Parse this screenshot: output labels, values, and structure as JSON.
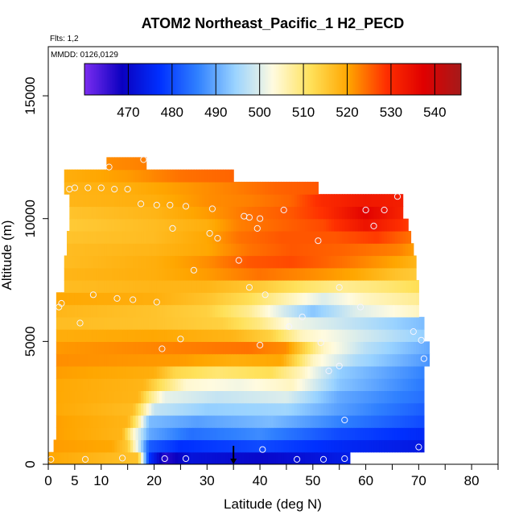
{
  "chart_data": {
    "type": "heatmap",
    "title": "ATOM2 Northeast_Pacific_1 H2_PECD",
    "flights_note": "Flts: 1,2",
    "dates_note": "MMDD: 0126,0129",
    "xlabel": "Latitude (deg N)",
    "ylabel": "Altitude (m)",
    "xlim": [
      0,
      85
    ],
    "ylim": [
      0,
      17000
    ],
    "x_ticks": [
      0,
      5,
      10,
      20,
      30,
      40,
      50,
      60,
      70,
      80
    ],
    "x_tick_labels": [
      "0",
      "5",
      "10",
      "20",
      "30",
      "40",
      "50",
      "60",
      "70",
      "80"
    ],
    "x_minor_ticks": [
      15,
      25,
      35,
      45,
      55,
      65,
      75,
      85
    ],
    "y_ticks": [
      0,
      5000,
      10000,
      15000
    ],
    "y_tick_labels": [
      "0",
      "5000",
      "10000",
      "15000"
    ],
    "colorbar": {
      "min": 460,
      "max": 546,
      "ticks": [
        470,
        480,
        490,
        500,
        510,
        520,
        530,
        540
      ],
      "tick_labels": [
        "470",
        "480",
        "490",
        "500",
        "510",
        "520",
        "530",
        "540"
      ],
      "colors": [
        "#7b2df0",
        "#0a00c0",
        "#0030ff",
        "#2f80ff",
        "#9ad3ff",
        "#fffbe0",
        "#ffe15a",
        "#ffa600",
        "#ff3000",
        "#e00000",
        "#a51a1a"
      ]
    },
    "layers": [
      {
        "alt": [
          0,
          500
        ],
        "lat_min": 0,
        "lat_max": 57,
        "values": [
          [
            0,
            520
          ],
          [
            17,
            516
          ],
          [
            19,
            478
          ],
          [
            22,
            466
          ],
          [
            27,
            472
          ],
          [
            40,
            470
          ],
          [
            50,
            472
          ],
          [
            57,
            474
          ]
        ]
      },
      {
        "alt": [
          500,
          1000
        ],
        "lat_min": 1,
        "lat_max": 71,
        "values": [
          [
            0,
            521
          ],
          [
            12,
            520
          ],
          [
            15,
            515
          ],
          [
            17,
            500
          ],
          [
            19,
            482
          ],
          [
            25,
            477
          ],
          [
            40,
            480
          ],
          [
            55,
            476
          ],
          [
            71,
            473
          ]
        ]
      },
      {
        "alt": [
          1000,
          1500
        ],
        "lat_min": 1.5,
        "lat_max": 71,
        "values": [
          [
            0,
            521
          ],
          [
            14,
            518
          ],
          [
            16,
            505
          ],
          [
            19,
            490
          ],
          [
            27,
            484
          ],
          [
            40,
            487
          ],
          [
            55,
            480
          ],
          [
            71,
            476
          ]
        ]
      },
      {
        "alt": [
          1500,
          2000
        ],
        "lat_min": 1.5,
        "lat_max": 71,
        "values": [
          [
            0,
            521
          ],
          [
            15,
            518
          ],
          [
            17,
            508
          ],
          [
            19,
            492
          ],
          [
            28,
            489
          ],
          [
            42,
            492
          ],
          [
            55,
            486
          ],
          [
            71,
            480
          ]
        ]
      },
      {
        "alt": [
          2000,
          2500
        ],
        "lat_min": 1.5,
        "lat_max": 71,
        "values": [
          [
            0,
            520
          ],
          [
            16,
            517
          ],
          [
            18,
            508
          ],
          [
            20,
            498
          ],
          [
            30,
            494
          ],
          [
            45,
            495
          ],
          [
            55,
            489
          ],
          [
            71,
            482
          ]
        ]
      },
      {
        "alt": [
          2500,
          3000
        ],
        "lat_min": 1.5,
        "lat_max": 71,
        "values": [
          [
            0,
            520
          ],
          [
            17,
            518
          ],
          [
            19,
            510
          ],
          [
            22,
            501
          ],
          [
            32,
            498
          ],
          [
            45,
            500
          ],
          [
            55,
            490
          ],
          [
            71,
            484
          ]
        ]
      },
      {
        "alt": [
          3000,
          3500
        ],
        "lat_min": 1.5,
        "lat_max": 71,
        "values": [
          [
            0,
            520
          ],
          [
            18,
            518
          ],
          [
            21,
            512
          ],
          [
            26,
            504
          ],
          [
            36,
            502
          ],
          [
            46,
            505
          ],
          [
            55,
            493
          ],
          [
            71,
            485
          ]
        ]
      },
      {
        "alt": [
          3500,
          4000
        ],
        "lat_min": 1.5,
        "lat_max": 71,
        "values": [
          [
            0,
            521
          ],
          [
            20,
            519
          ],
          [
            24,
            513
          ],
          [
            32,
            510
          ],
          [
            42,
            512
          ],
          [
            48,
            505
          ],
          [
            55,
            494
          ],
          [
            71,
            486
          ]
        ]
      },
      {
        "alt": [
          4000,
          4500
        ],
        "lat_min": 1.5,
        "lat_max": 72,
        "values": [
          [
            0,
            522
          ],
          [
            25,
            521
          ],
          [
            35,
            519
          ],
          [
            44,
            520
          ],
          [
            50,
            505
          ],
          [
            58,
            496
          ],
          [
            72,
            488
          ]
        ]
      },
      {
        "alt": [
          4500,
          5000
        ],
        "lat_min": 1.5,
        "lat_max": 72,
        "values": [
          [
            0,
            521
          ],
          [
            25,
            523
          ],
          [
            38,
            524
          ],
          [
            45,
            522
          ],
          [
            52,
            505
          ],
          [
            60,
            497
          ],
          [
            72,
            490
          ]
        ]
      },
      {
        "alt": [
          5000,
          5500
        ],
        "lat_min": 1.5,
        "lat_max": 71,
        "values": [
          [
            0,
            519
          ],
          [
            20,
            520
          ],
          [
            35,
            518
          ],
          [
            42,
            514
          ],
          [
            48,
            505
          ],
          [
            58,
            500
          ],
          [
            71,
            494
          ]
        ]
      },
      {
        "alt": [
          5500,
          6000
        ],
        "lat_min": 1.5,
        "lat_max": 71,
        "values": [
          [
            0,
            517
          ],
          [
            20,
            516
          ],
          [
            33,
            514
          ],
          [
            40,
            509
          ],
          [
            46,
            502
          ],
          [
            54,
            499
          ],
          [
            64,
            495
          ],
          [
            71,
            492
          ]
        ]
      },
      {
        "alt": [
          6000,
          6500
        ],
        "lat_min": 1.5,
        "lat_max": 70,
        "values": [
          [
            0,
            518
          ],
          [
            20,
            516
          ],
          [
            30,
            514
          ],
          [
            38,
            508
          ],
          [
            44,
            500
          ],
          [
            50,
            493
          ],
          [
            58,
            500
          ],
          [
            70,
            505
          ]
        ]
      },
      {
        "alt": [
          6500,
          7000
        ],
        "lat_min": 1.5,
        "lat_max": 70,
        "values": [
          [
            0,
            520
          ],
          [
            20,
            519
          ],
          [
            30,
            516
          ],
          [
            38,
            512
          ],
          [
            44,
            507
          ],
          [
            52,
            500
          ],
          [
            60,
            505
          ],
          [
            70,
            508
          ]
        ]
      },
      {
        "alt": [
          7000,
          7500
        ],
        "lat_min": 3,
        "lat_max": 70,
        "values": [
          [
            3,
            517
          ],
          [
            20,
            518
          ],
          [
            30,
            518
          ],
          [
            40,
            515
          ],
          [
            48,
            511
          ],
          [
            56,
            508
          ],
          [
            64,
            510
          ],
          [
            70,
            512
          ]
        ]
      },
      {
        "alt": [
          7500,
          8000
        ],
        "lat_min": 3,
        "lat_max": 69.5,
        "values": [
          [
            3,
            518
          ],
          [
            20,
            519
          ],
          [
            30,
            521
          ],
          [
            40,
            524
          ],
          [
            50,
            522
          ],
          [
            58,
            520
          ],
          [
            66,
            516
          ],
          [
            69.5,
            515
          ]
        ]
      },
      {
        "alt": [
          8000,
          8500
        ],
        "lat_min": 3,
        "lat_max": 69.5,
        "values": [
          [
            3,
            517
          ],
          [
            20,
            519
          ],
          [
            30,
            522
          ],
          [
            38,
            526
          ],
          [
            46,
            527
          ],
          [
            56,
            524
          ],
          [
            66,
            520
          ],
          [
            69.5,
            518
          ]
        ]
      },
      {
        "alt": [
          8500,
          9000
        ],
        "lat_min": 3.5,
        "lat_max": 69,
        "values": [
          [
            3.5,
            517
          ],
          [
            20,
            518
          ],
          [
            30,
            520
          ],
          [
            38,
            524
          ],
          [
            46,
            526
          ],
          [
            56,
            525
          ],
          [
            66,
            523
          ],
          [
            69,
            521
          ]
        ]
      },
      {
        "alt": [
          9000,
          9500
        ],
        "lat_min": 3.5,
        "lat_max": 68.5,
        "values": [
          [
            3.5,
            516
          ],
          [
            20,
            517
          ],
          [
            30,
            520
          ],
          [
            36,
            524
          ],
          [
            44,
            526
          ],
          [
            54,
            526
          ],
          [
            62,
            528
          ],
          [
            68.5,
            524
          ]
        ]
      },
      {
        "alt": [
          9500,
          10000
        ],
        "lat_min": 4,
        "lat_max": 68,
        "values": [
          [
            4,
            515
          ],
          [
            20,
            517
          ],
          [
            30,
            519
          ],
          [
            36,
            523
          ],
          [
            44,
            525
          ],
          [
            52,
            527
          ],
          [
            60,
            534
          ],
          [
            68,
            528
          ]
        ]
      },
      {
        "alt": [
          10000,
          10500
        ],
        "lat_min": 4,
        "lat_max": 67,
        "values": [
          [
            4,
            516
          ],
          [
            20,
            518
          ],
          [
            30,
            521
          ],
          [
            38,
            524
          ],
          [
            46,
            526
          ],
          [
            52,
            529
          ],
          [
            60,
            537
          ],
          [
            67,
            531
          ]
        ]
      },
      {
        "alt": [
          10500,
          11000
        ],
        "lat_min": 4,
        "lat_max": 67,
        "values": [
          [
            4,
            518
          ],
          [
            20,
            519
          ],
          [
            30,
            522
          ],
          [
            38,
            523
          ],
          [
            46,
            525
          ],
          [
            52,
            530
          ],
          [
            60,
            533
          ],
          [
            67,
            532
          ]
        ]
      },
      {
        "alt": [
          11000,
          11500
        ],
        "lat_min": 3,
        "lat_max": 51,
        "values": [
          [
            3,
            518
          ],
          [
            15,
            519
          ],
          [
            25,
            521
          ],
          [
            35,
            523
          ],
          [
            43,
            525
          ],
          [
            51,
            526
          ]
        ]
      },
      {
        "alt": [
          11500,
          12000
        ],
        "lat_min": 3,
        "lat_max": 35,
        "values": [
          [
            3,
            519
          ],
          [
            15,
            521
          ],
          [
            25,
            524
          ],
          [
            35,
            525
          ]
        ]
      },
      {
        "alt": [
          12000,
          12500
        ],
        "lat_min": 11,
        "lat_max": 18.5,
        "values": [
          [
            11,
            522
          ],
          [
            18.5,
            523
          ]
        ]
      }
    ],
    "observations": [
      {
        "lat": 0.5,
        "alt": 200
      },
      {
        "lat": 7,
        "alt": 200
      },
      {
        "lat": 14,
        "alt": 250
      },
      {
        "lat": 22,
        "alt": 230
      },
      {
        "lat": 26,
        "alt": 230
      },
      {
        "lat": 47,
        "alt": 200
      },
      {
        "lat": 52,
        "alt": 200
      },
      {
        "lat": 56,
        "alt": 230
      },
      {
        "lat": 40.5,
        "alt": 600
      },
      {
        "lat": 70,
        "alt": 700
      },
      {
        "lat": 56,
        "alt": 1800
      },
      {
        "lat": 53,
        "alt": 3800
      },
      {
        "lat": 55,
        "alt": 4000
      },
      {
        "lat": 71,
        "alt": 4300
      },
      {
        "lat": 21.5,
        "alt": 4700
      },
      {
        "lat": 40,
        "alt": 4850
      },
      {
        "lat": 51.5,
        "alt": 4950
      },
      {
        "lat": 70.5,
        "alt": 5050
      },
      {
        "lat": 25,
        "alt": 5100
      },
      {
        "lat": 69,
        "alt": 5400
      },
      {
        "lat": 45.5,
        "alt": 5600
      },
      {
        "lat": 6,
        "alt": 5750
      },
      {
        "lat": 48,
        "alt": 6000
      },
      {
        "lat": 2,
        "alt": 6400
      },
      {
        "lat": 59,
        "alt": 6400
      },
      {
        "lat": 2.5,
        "alt": 6550
      },
      {
        "lat": 20.5,
        "alt": 6600
      },
      {
        "lat": 16,
        "alt": 6700
      },
      {
        "lat": 13,
        "alt": 6750
      },
      {
        "lat": 8.5,
        "alt": 6900
      },
      {
        "lat": 41,
        "alt": 6900
      },
      {
        "lat": 55,
        "alt": 7200
      },
      {
        "lat": 38,
        "alt": 7200
      },
      {
        "lat": 27.5,
        "alt": 7900
      },
      {
        "lat": 36,
        "alt": 8300
      },
      {
        "lat": 51,
        "alt": 9100
      },
      {
        "lat": 32,
        "alt": 9200
      },
      {
        "lat": 30.5,
        "alt": 9400
      },
      {
        "lat": 23.5,
        "alt": 9600
      },
      {
        "lat": 39.5,
        "alt": 9600
      },
      {
        "lat": 61.5,
        "alt": 9700
      },
      {
        "lat": 40,
        "alt": 10000
      },
      {
        "lat": 38,
        "alt": 10050
      },
      {
        "lat": 37,
        "alt": 10100
      },
      {
        "lat": 60,
        "alt": 10350
      },
      {
        "lat": 63.5,
        "alt": 10350
      },
      {
        "lat": 44.5,
        "alt": 10350
      },
      {
        "lat": 31,
        "alt": 10400
      },
      {
        "lat": 26,
        "alt": 10500
      },
      {
        "lat": 23,
        "alt": 10550
      },
      {
        "lat": 20.5,
        "alt": 10550
      },
      {
        "lat": 17.5,
        "alt": 10600
      },
      {
        "lat": 66,
        "alt": 10900
      },
      {
        "lat": 4,
        "alt": 11200
      },
      {
        "lat": 5,
        "alt": 11250
      },
      {
        "lat": 7.5,
        "alt": 11250
      },
      {
        "lat": 10,
        "alt": 11250
      },
      {
        "lat": 12.5,
        "alt": 11200
      },
      {
        "lat": 15,
        "alt": 11200
      },
      {
        "lat": 11.5,
        "alt": 12100
      },
      {
        "lat": 18,
        "alt": 12400
      }
    ],
    "marker": {
      "lat": 35,
      "alt_top": 750,
      "alt_bottom": 0
    }
  }
}
